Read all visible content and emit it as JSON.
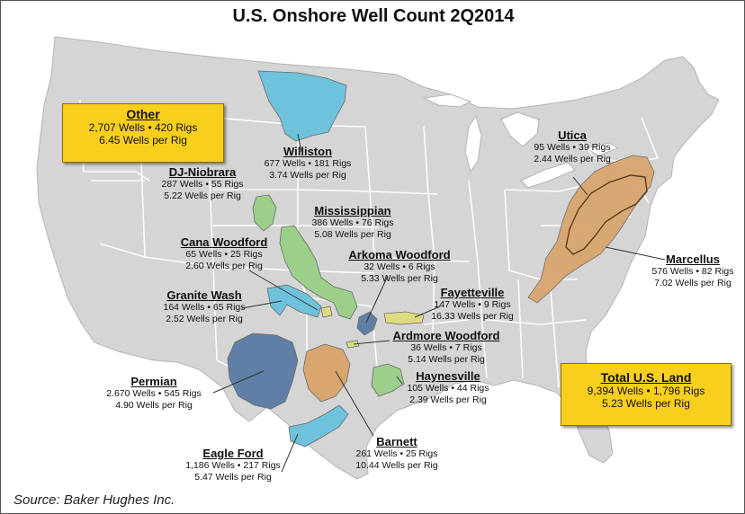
{
  "title": "U.S. Onshore Well Count 2Q2014",
  "source": "Source: Baker Hughes Inc.",
  "colors": {
    "map_land": "#d5d5d5",
    "state_lines": "#ffffff",
    "water": "#ffffff",
    "summary_box": "#f8cf1c",
    "blue_basins": "#6fc2dc",
    "green_basins": "#9ccf8a",
    "tan_basins": "#d8a66e",
    "steel_basins": "#5f7fa6",
    "yellow_basins": "#dedc80"
  },
  "summary_boxes": {
    "other": {
      "name": "Other",
      "line1": "2,707 Wells  •  420 Rigs",
      "line2": "6.45 Wells per Rig"
    },
    "total": {
      "name": "Total U.S. Land",
      "line1": "9,394 Wells  •  1,796 Rigs",
      "line2": "5.23 Wells per Rig"
    }
  },
  "plays": {
    "williston": {
      "name": "Williston",
      "line1": "677 Wells • 181 Rigs",
      "line2": "3.74 Wells per Rig",
      "color": "blue"
    },
    "dj_niobrara": {
      "name": "DJ-Niobrara",
      "line1": "287 Wells • 55 Rigs",
      "line2": "5.22 Wells per Rig",
      "color": "green"
    },
    "mississippian": {
      "name": "Mississippian",
      "line1": "386 Wells • 76 Rigs",
      "line2": "5.08 Wells per Rig",
      "color": "green"
    },
    "cana_woodford": {
      "name": "Cana Woodford",
      "line1": "65 Wells • 25 Rigs",
      "line2": "2.60 Wells per Rig",
      "color": "yellow"
    },
    "arkoma_woodford": {
      "name": "Arkoma Woodford",
      "line1": "32 Wells • 6 Rigs",
      "line2": "5.33 Wells per Rig",
      "color": "steel"
    },
    "granite_wash": {
      "name": "Granite Wash",
      "line1": "164 Wells • 65 Rigs",
      "line2": "2.52 Wells per Rig",
      "color": "blue"
    },
    "fayetteville": {
      "name": "Fayetteville",
      "line1": "147 Wells • 9 Rigs",
      "line2": "16.33 Wells per Rig",
      "color": "yellow"
    },
    "ardmore_woodford": {
      "name": "Ardmore Woodford",
      "line1": "36 Wells • 7 Rigs",
      "line2": "5.14 Wells per Rig",
      "color": "yellow"
    },
    "permian": {
      "name": "Permian",
      "line1": "2.670 Wells • 545 Rigs",
      "line2": "4.90 Wells per Rig",
      "color": "steel"
    },
    "haynesville": {
      "name": "Haynesville",
      "line1": "105 Wells • 44 Rigs",
      "line2": "2.39 Wells per Rig",
      "color": "green"
    },
    "barnett": {
      "name": "Barnett",
      "line1": "261 Wells • 25 Rigs",
      "line2": "10.44 Wells per Rig",
      "color": "tan"
    },
    "eagle_ford": {
      "name": "Eagle Ford",
      "line1": "1,186 Wells • 217 Rigs",
      "line2": "5.47 Wells per Rig",
      "color": "blue"
    },
    "utica": {
      "name": "Utica",
      "line1": "95 Wells • 39 Rigs",
      "line2": "2.44 Wells per Rig",
      "color": "tan"
    },
    "marcellus": {
      "name": "Marcellus",
      "line1": "576 Wells • 82 Rigs",
      "line2": "7.02 Wells per Rig",
      "color": "tan"
    }
  }
}
